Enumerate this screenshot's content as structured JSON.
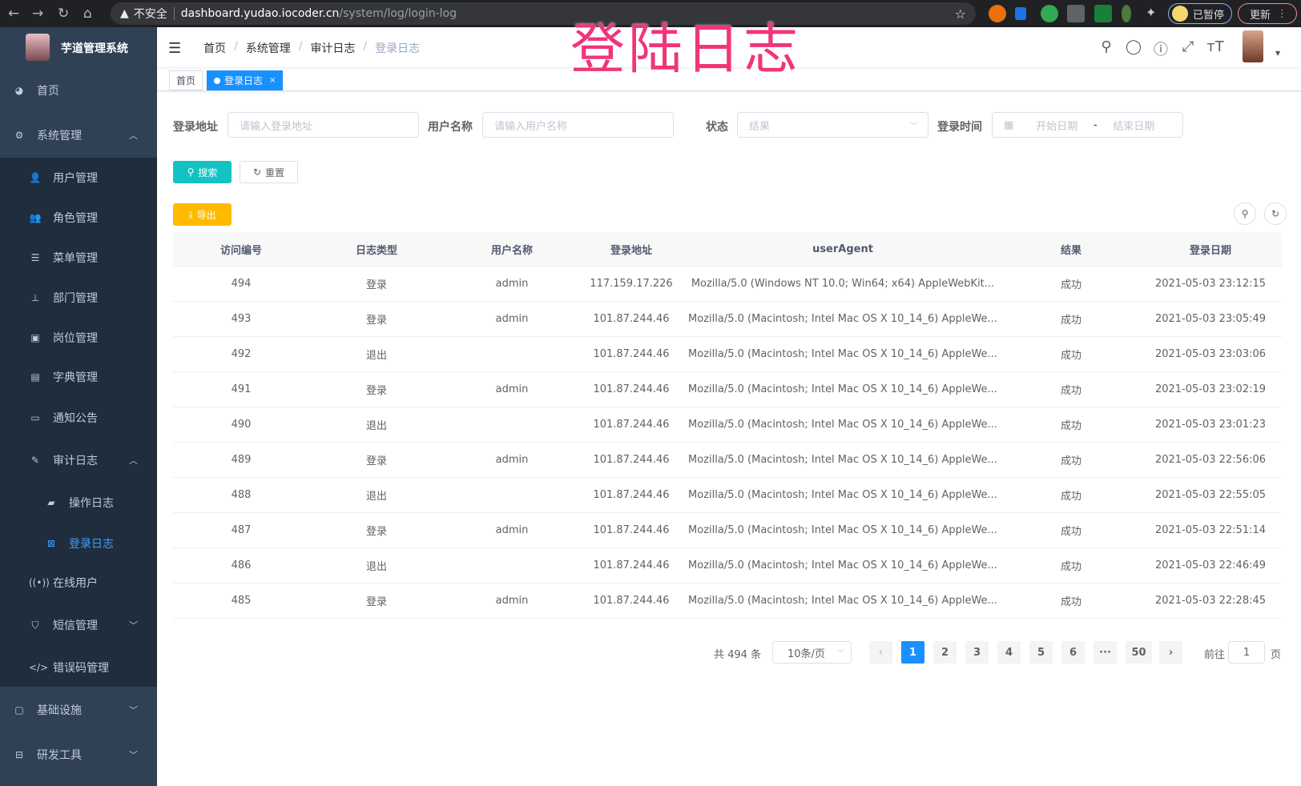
{
  "browser": {
    "security": "不安全",
    "url_host": "dashboard.yudao.iocoder.cn",
    "url_path": "/system/log/login-log",
    "paused_label": "已暂停",
    "update_label": "更新"
  },
  "overlay_title": "登陆日志",
  "sidebar": {
    "title": "芋道管理系统",
    "items": [
      {
        "label": "首页",
        "icon": "dashboard-icon",
        "glyph": "◕",
        "level": 0,
        "chev": ""
      },
      {
        "label": "系统管理",
        "icon": "gear-icon",
        "glyph": "⚙",
        "level": 0,
        "chev": "︿"
      },
      {
        "label": "用户管理",
        "icon": "user-icon",
        "glyph": "👤",
        "level": 1,
        "chev": ""
      },
      {
        "label": "角色管理",
        "icon": "role-icon",
        "glyph": "👥",
        "level": 1,
        "chev": ""
      },
      {
        "label": "菜单管理",
        "icon": "menu-icon",
        "glyph": "☰",
        "level": 1,
        "chev": ""
      },
      {
        "label": "部门管理",
        "icon": "tree-icon",
        "glyph": "⊥",
        "level": 1,
        "chev": ""
      },
      {
        "label": "岗位管理",
        "icon": "post-icon",
        "glyph": "▣",
        "level": 1,
        "chev": ""
      },
      {
        "label": "字典管理",
        "icon": "dict-icon",
        "glyph": "▤",
        "level": 1,
        "chev": ""
      },
      {
        "label": "通知公告",
        "icon": "message-icon",
        "glyph": "▭",
        "level": 1,
        "chev": ""
      },
      {
        "label": "审计日志",
        "icon": "edit-icon",
        "glyph": "✎",
        "level": 1,
        "chev": "︿"
      },
      {
        "label": "操作日志",
        "icon": "form-icon",
        "glyph": "▰",
        "level": 2,
        "chev": ""
      },
      {
        "label": "登录日志",
        "icon": "logininfor-icon",
        "glyph": "⊠",
        "level": 2,
        "chev": "",
        "active": true
      },
      {
        "label": "在线用户",
        "icon": "online-icon",
        "glyph": "((•))",
        "level": 1,
        "chev": ""
      },
      {
        "label": "短信管理",
        "icon": "shield-icon",
        "glyph": "⛉",
        "level": 1,
        "chev": "﹀"
      },
      {
        "label": "错误码管理",
        "icon": "code-icon",
        "glyph": "</>",
        "level": 1,
        "chev": ""
      },
      {
        "label": "基础设施",
        "icon": "monitor-icon",
        "glyph": "▢",
        "level": 0,
        "chev": "﹀"
      },
      {
        "label": "研发工具",
        "icon": "tool-icon",
        "glyph": "⊟",
        "level": 0,
        "chev": "﹀"
      }
    ]
  },
  "breadcrumb": [
    "首页",
    "系统管理",
    "审计日志",
    "登录日志"
  ],
  "tags": [
    {
      "label": "首页"
    },
    {
      "label": "登录日志",
      "active": true
    }
  ],
  "filters": {
    "ip": {
      "label": "登录地址",
      "placeholder": "请输入登录地址"
    },
    "username": {
      "label": "用户名称",
      "placeholder": "请输入用户名称"
    },
    "status": {
      "label": "状态",
      "placeholder": "结果"
    },
    "time": {
      "label": "登录时间",
      "start": "开始日期",
      "sep": "-",
      "end": "结束日期"
    }
  },
  "buttons": {
    "search": "搜索",
    "reset": "重置",
    "export": "导出"
  },
  "colors": {
    "sidebar": "#304156",
    "submenu": "#1f2d3d",
    "primary": "#1890ff",
    "search": "#13c2c2",
    "export": "#ffba00"
  },
  "table": {
    "columns": [
      "访问编号",
      "日志类型",
      "用户名称",
      "登录地址",
      "userAgent",
      "结果",
      "登录日期"
    ],
    "rows": [
      [
        "494",
        "登录",
        "admin",
        "117.159.17.226",
        "Mozilla/5.0 (Windows NT 10.0; Win64; x64) AppleWebKit...",
        "成功",
        "2021-05-03 23:12:15"
      ],
      [
        "493",
        "登录",
        "admin",
        "101.87.244.46",
        "Mozilla/5.0 (Macintosh; Intel Mac OS X 10_14_6) AppleWe...",
        "成功",
        "2021-05-03 23:05:49"
      ],
      [
        "492",
        "退出",
        "",
        "101.87.244.46",
        "Mozilla/5.0 (Macintosh; Intel Mac OS X 10_14_6) AppleWe...",
        "成功",
        "2021-05-03 23:03:06"
      ],
      [
        "491",
        "登录",
        "admin",
        "101.87.244.46",
        "Mozilla/5.0 (Macintosh; Intel Mac OS X 10_14_6) AppleWe...",
        "成功",
        "2021-05-03 23:02:19"
      ],
      [
        "490",
        "退出",
        "",
        "101.87.244.46",
        "Mozilla/5.0 (Macintosh; Intel Mac OS X 10_14_6) AppleWe...",
        "成功",
        "2021-05-03 23:01:23"
      ],
      [
        "489",
        "登录",
        "admin",
        "101.87.244.46",
        "Mozilla/5.0 (Macintosh; Intel Mac OS X 10_14_6) AppleWe...",
        "成功",
        "2021-05-03 22:56:06"
      ],
      [
        "488",
        "退出",
        "",
        "101.87.244.46",
        "Mozilla/5.0 (Macintosh; Intel Mac OS X 10_14_6) AppleWe...",
        "成功",
        "2021-05-03 22:55:05"
      ],
      [
        "487",
        "登录",
        "admin",
        "101.87.244.46",
        "Mozilla/5.0 (Macintosh; Intel Mac OS X 10_14_6) AppleWe...",
        "成功",
        "2021-05-03 22:51:14"
      ],
      [
        "486",
        "退出",
        "",
        "101.87.244.46",
        "Mozilla/5.0 (Macintosh; Intel Mac OS X 10_14_6) AppleWe...",
        "成功",
        "2021-05-03 22:46:49"
      ],
      [
        "485",
        "登录",
        "admin",
        "101.87.244.46",
        "Mozilla/5.0 (Macintosh; Intel Mac OS X 10_14_6) AppleWe...",
        "成功",
        "2021-05-03 22:28:45"
      ]
    ]
  },
  "pagination": {
    "total": "共 494 条",
    "page_size": "10条/页",
    "pages": [
      "1",
      "2",
      "3",
      "4",
      "5",
      "6",
      "···",
      "50"
    ],
    "current": "1",
    "goto_prefix": "前往",
    "goto_value": "1",
    "goto_suffix": "页"
  }
}
